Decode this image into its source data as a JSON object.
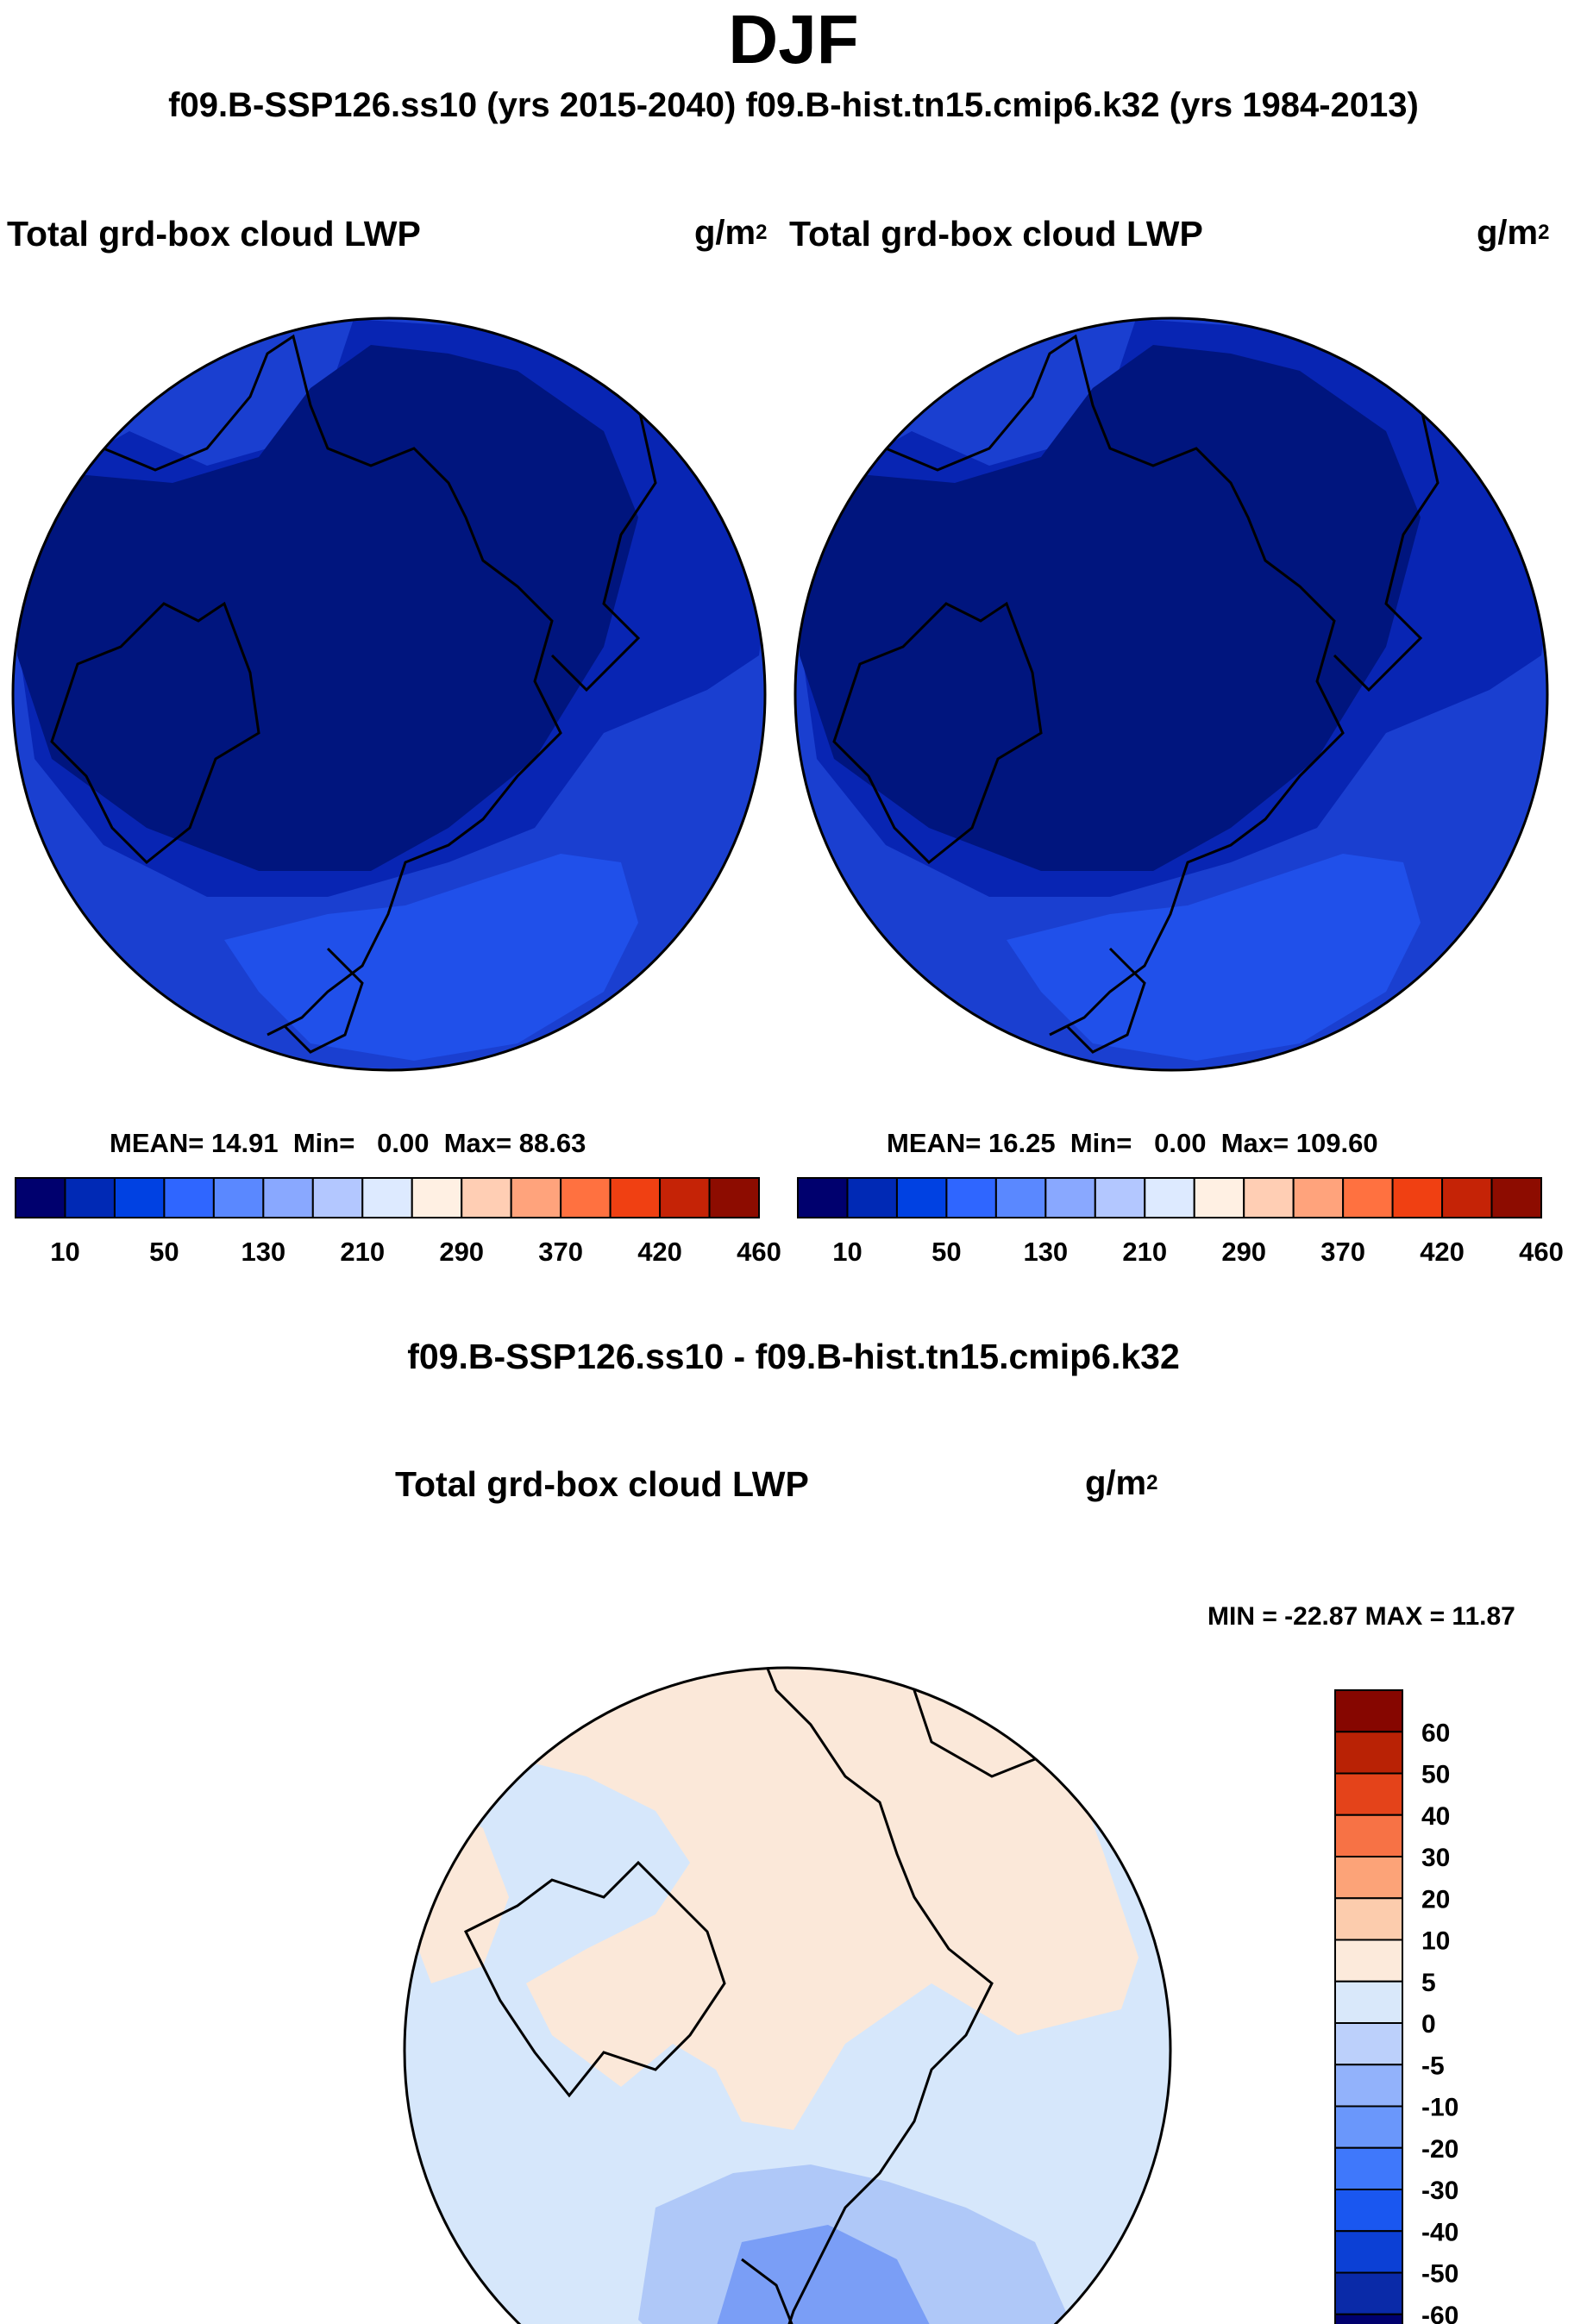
{
  "season": "DJF",
  "cases_line": "f09.B-SSP126.ss10 (yrs 2015-2040)  f09.B-hist.tn15.cmip6.k32 (yrs 1984-2013)",
  "panels": [
    {
      "title": "Total grd-box cloud LWP",
      "units": "g/m",
      "units_sup": "2",
      "stats": {
        "mean_label": "MEAN=",
        "mean": "14.91",
        "min_label": "Min=",
        "min": "0.00",
        "max_label": "Max=",
        "max": "88.63"
      }
    },
    {
      "title": "Total grd-box cloud LWP",
      "units": "g/m",
      "units_sup": "2",
      "stats": {
        "mean_label": "MEAN=",
        "mean": "16.25",
        "min_label": "Min=",
        "min": "0.00",
        "max_label": "Max=",
        "max": "109.60"
      }
    }
  ],
  "diff_header": "f09.B-SSP126.ss10 - f09.B-hist.tn15.cmip6.k32",
  "diff_panel": {
    "title": "Total grd-box cloud LWP",
    "units": "g/m",
    "units_sup": "2",
    "minmax": "MIN = -22.87 MAX =  11.87"
  },
  "colors": {
    "abs": [
      "#00006e",
      "#0029b5",
      "#0041e2",
      "#2f66ff",
      "#5a88ff",
      "#89a8ff",
      "#b3c7ff",
      "#ddeaff",
      "#fff0e3",
      "#ffceb4",
      "#ffa37c",
      "#ff7140",
      "#f04012",
      "#c52306",
      "#8d0c00"
    ],
    "diff": [
      "#00006e",
      "#0a2aa8",
      "#0c40d5",
      "#1a57f0",
      "#3f78fb",
      "#6a97fb",
      "#92b2fb",
      "#bcd0fb",
      "#d9e8fa",
      "#fceadb",
      "#fcccad",
      "#fca378",
      "#f77245",
      "#e4431a",
      "#b92205",
      "#860600"
    ],
    "coast": "#000000",
    "abs_ocean": "#0826b6",
    "abs_land": "#001a92"
  },
  "chart_data": [
    {
      "type": "heatmap",
      "projection": "north-polar-stereographic",
      "title": "Total grd-box cloud LWP",
      "units": "g/m2",
      "mean": 14.91,
      "min": 0.0,
      "max": 88.63,
      "colorbar": {
        "orientation": "horizontal",
        "levels": [
          10,
          30,
          50,
          90,
          130,
          170,
          210,
          250,
          290,
          330,
          370,
          400,
          420,
          440,
          460
        ],
        "tick_labels": [
          "10",
          "50",
          "130",
          "210",
          "290",
          "370",
          "420",
          "460"
        ]
      }
    },
    {
      "type": "heatmap",
      "projection": "north-polar-stereographic",
      "title": "Total grd-box cloud LWP",
      "units": "g/m2",
      "mean": 16.25,
      "min": 0.0,
      "max": 109.6,
      "colorbar": {
        "orientation": "horizontal",
        "levels": [
          10,
          30,
          50,
          90,
          130,
          170,
          210,
          250,
          290,
          330,
          370,
          400,
          420,
          440,
          460
        ],
        "tick_labels": [
          "10",
          "50",
          "130",
          "210",
          "290",
          "370",
          "420",
          "460"
        ]
      }
    },
    {
      "type": "heatmap",
      "projection": "north-polar-stereographic",
      "title": "Total grd-box cloud LWP",
      "units": "g/m2",
      "min": -22.87,
      "max": 11.87,
      "colorbar": {
        "orientation": "vertical",
        "levels": [
          -60,
          -50,
          -40,
          -30,
          -20,
          -10,
          -5,
          0,
          5,
          10,
          20,
          30,
          40,
          50,
          60
        ],
        "tick_labels": [
          "60",
          "50",
          "40",
          "30",
          "20",
          "10",
          "5",
          "0",
          "-5",
          "-10",
          "-20",
          "-30",
          "-40",
          "-50",
          "-60"
        ]
      }
    }
  ]
}
